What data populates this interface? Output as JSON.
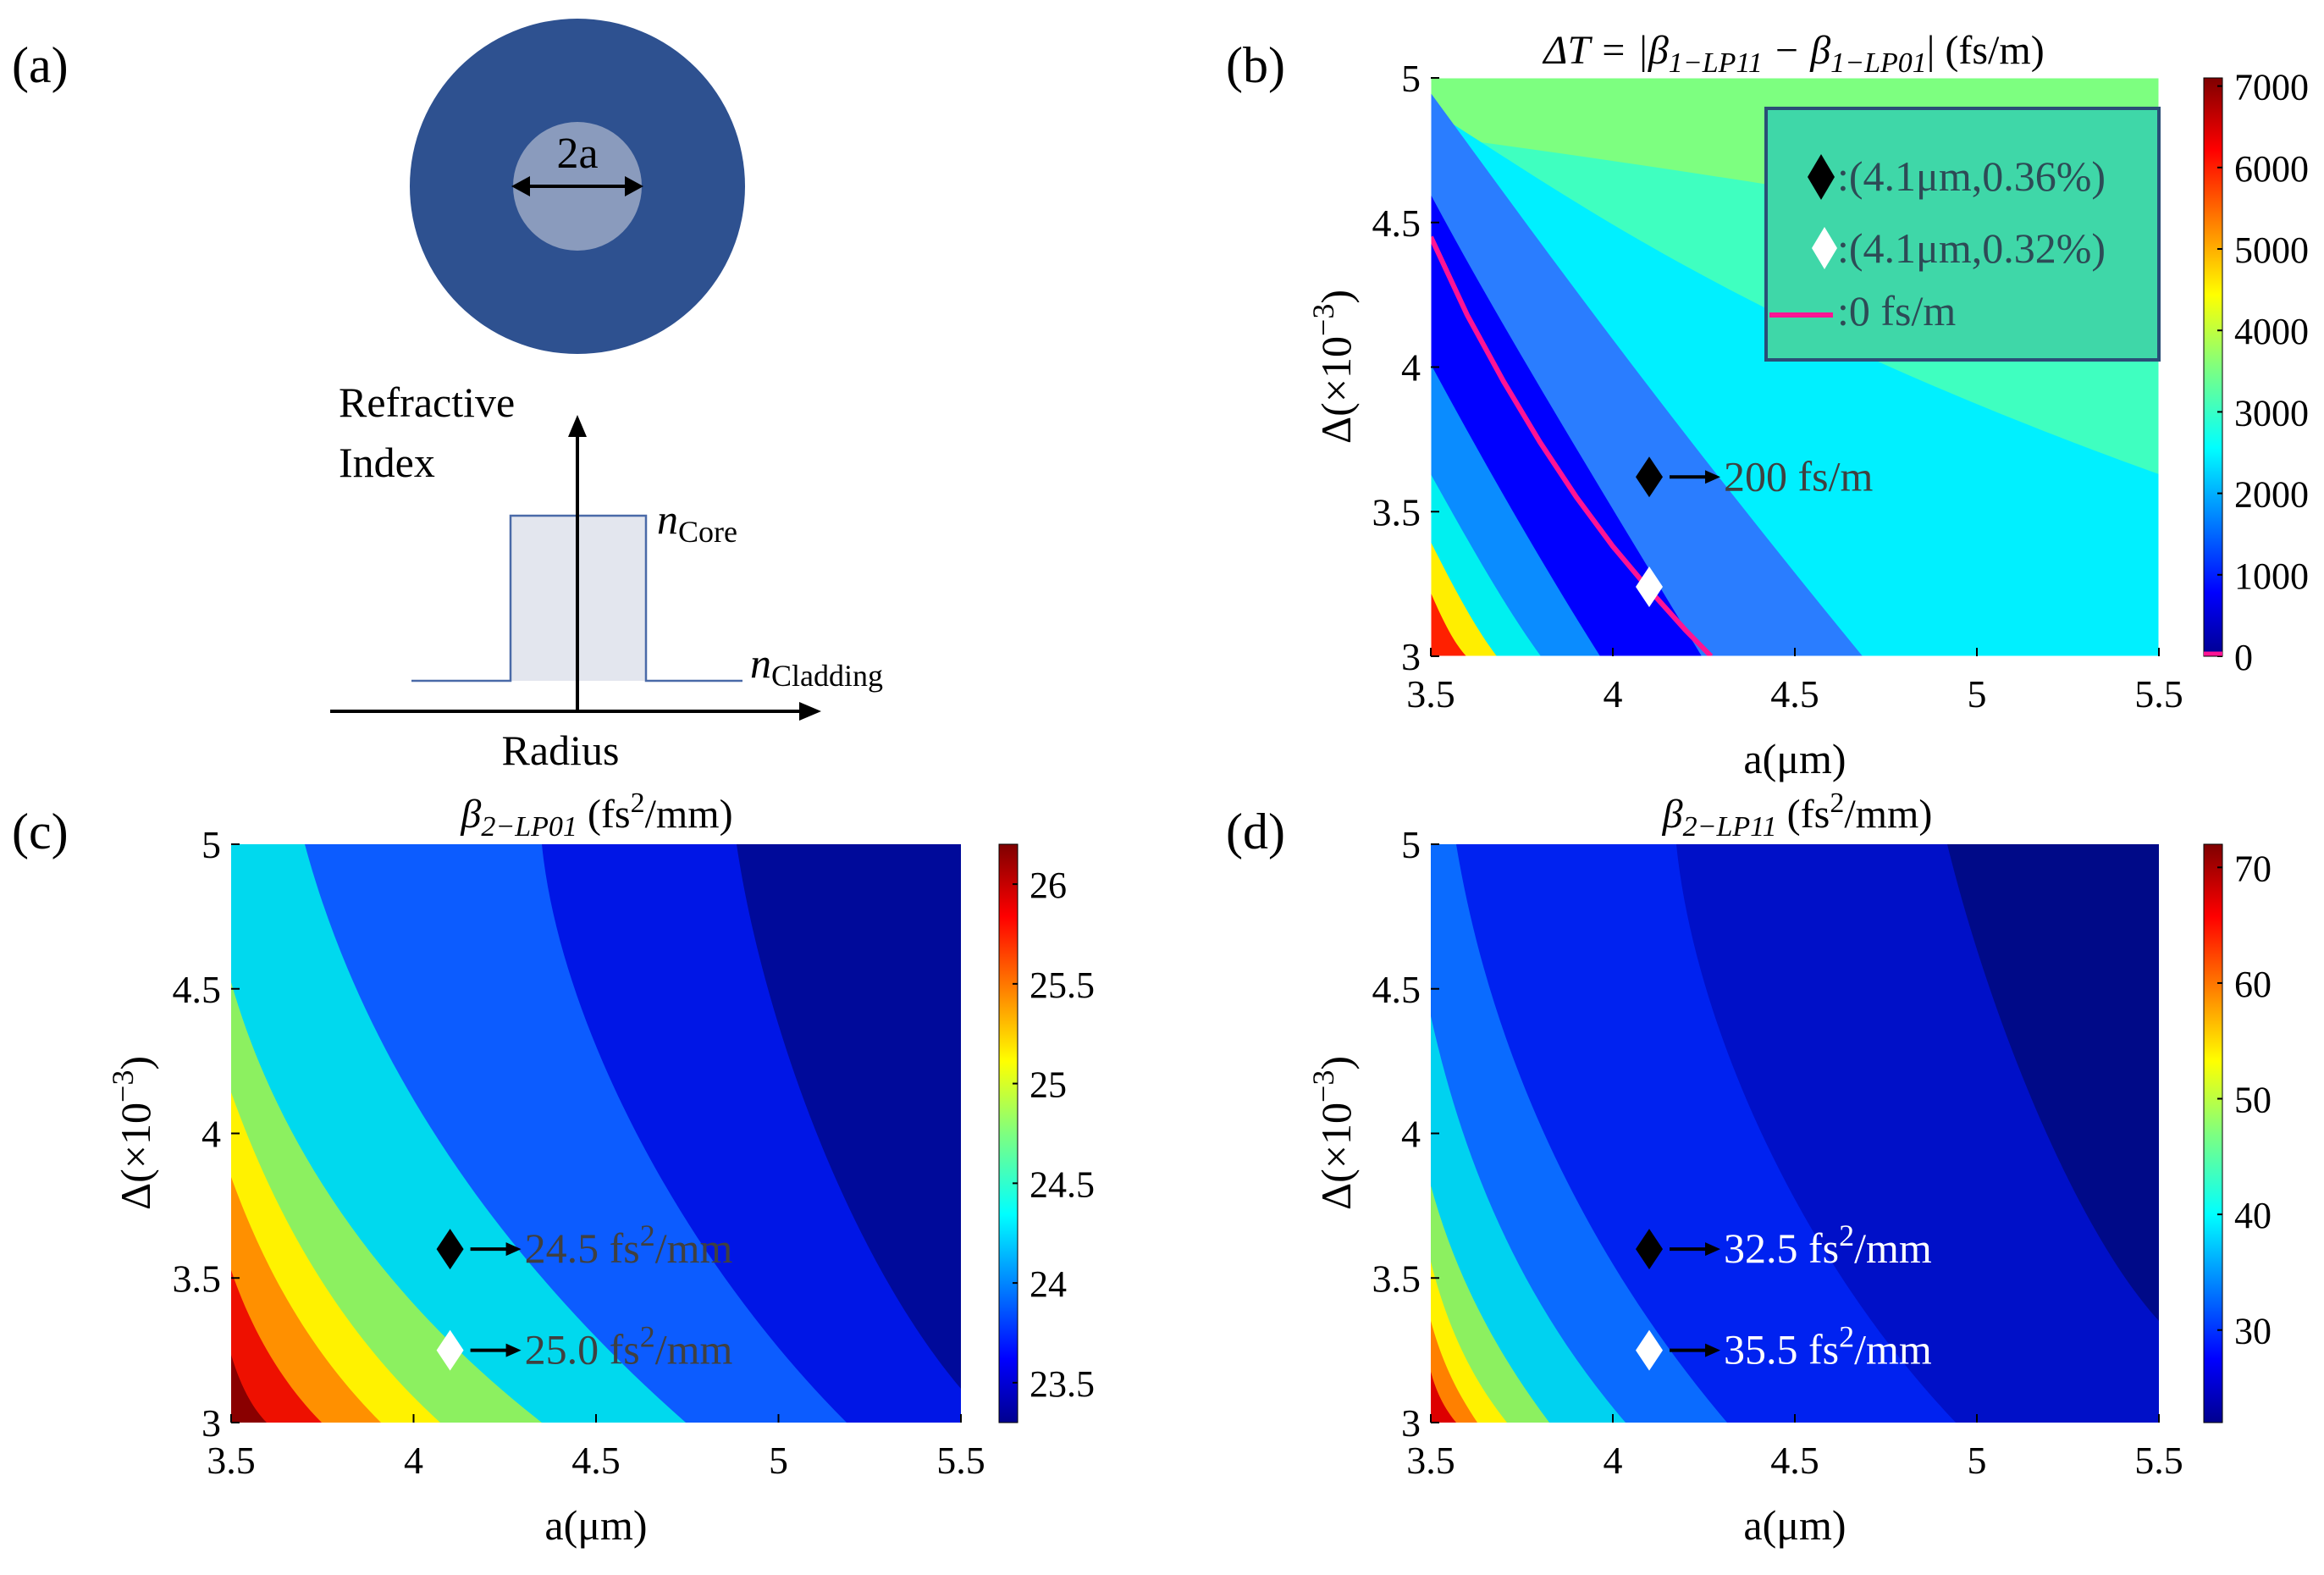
{
  "panels": {
    "a": {
      "label": "(a)",
      "fiber_label": "2a",
      "profile": {
        "ylabel_line1": "Refractive",
        "ylabel_line2": "Index",
        "xlabel": "Radius",
        "core_label": {
          "italic": "n",
          "sub": "Core"
        },
        "cladding_label": {
          "italic": "n",
          "sub": "Cladding"
        }
      },
      "colors": {
        "cladding": "#2e5190",
        "core": "#8a9bbd",
        "profile_fill": "#e3e6ee",
        "profile_line": "#4a6aa8"
      }
    },
    "b": {
      "label": "(b)"
    },
    "c": {
      "label": "(c)"
    },
    "d": {
      "label": "(d)"
    }
  },
  "chart_data": [
    {
      "panel": "b",
      "type": "heatmap",
      "title": "ΔT = |β1−LP11 − β1−LP01|  (fs/m)",
      "title_parts": {
        "lhs": "ΔT = |β",
        "s1": "1−LP11",
        "mid": " − β",
        "s2": "1−LP01",
        "rhs": "|  (fs/m)"
      },
      "xlabel": "a(μm)",
      "ylabel": "Δ(×10⁻³)",
      "ylabel_parts": {
        "base": "Δ(×10",
        "exp": "−3",
        "end": ")"
      },
      "xlim": [
        3.5,
        5.5
      ],
      "ylim": [
        3,
        5
      ],
      "xticks": [
        "3.5",
        "4",
        "4.5",
        "5",
        "5.5"
      ],
      "yticks": [
        "3",
        "3.5",
        "4",
        "4.5",
        "5"
      ],
      "colorbar": {
        "range": [
          0,
          7100
        ],
        "ticks": [
          "0",
          "1000",
          "2000",
          "3000",
          "4000",
          "5000",
          "6000",
          "7000"
        ],
        "tick_values": [
          0,
          1000,
          2000,
          3000,
          4000,
          5000,
          6000,
          7000
        ]
      },
      "zero_contour": {
        "label": ":0 fs/m",
        "color": "#ff1493",
        "points": [
          [
            3.5,
            4.45
          ],
          [
            3.6,
            4.18
          ],
          [
            3.7,
            3.95
          ],
          [
            3.8,
            3.74
          ],
          [
            3.9,
            3.55
          ],
          [
            4.0,
            3.38
          ],
          [
            4.1,
            3.23
          ],
          [
            4.2,
            3.09
          ],
          [
            4.27,
            3.0
          ]
        ]
      },
      "markers": [
        {
          "x": 4.1,
          "y": 3.62,
          "color": "black",
          "legend": ":(4.1μm,0.36%)",
          "annotation": "200 fs/m"
        },
        {
          "x": 4.1,
          "y": 3.24,
          "color": "white",
          "legend": ":(4.1μm,0.32%)",
          "annotation": ""
        }
      ]
    },
    {
      "panel": "c",
      "type": "heatmap",
      "title": "β2−LP01 (fs²/mm)",
      "title_parts": {
        "lhs": "β",
        "sub": "2−LP01",
        "rhs": " (fs",
        "sup": "2",
        "end": "/mm)"
      },
      "xlabel": "a(μm)",
      "ylabel": "Δ(×10⁻³)",
      "ylabel_parts": {
        "base": "Δ(×10",
        "exp": "−3",
        "end": ")"
      },
      "xlim": [
        3.5,
        5.5
      ],
      "ylim": [
        3,
        5
      ],
      "xticks": [
        "3.5",
        "4",
        "4.5",
        "5",
        "5.5"
      ],
      "yticks": [
        "3",
        "3.5",
        "4",
        "4.5",
        "5"
      ],
      "colorbar": {
        "range": [
          23.3,
          26.2
        ],
        "ticks": [
          "23.5",
          "24",
          "24.5",
          "25",
          "25.5",
          "26"
        ],
        "tick_values": [
          23.5,
          24,
          24.5,
          25,
          25.5,
          26
        ]
      },
      "markers": [
        {
          "x": 4.1,
          "y": 3.6,
          "color": "black",
          "annotation": {
            "val": "24.5 fs",
            "sup": "2",
            "unit": "/mm"
          }
        },
        {
          "x": 4.1,
          "y": 3.25,
          "color": "white",
          "annotation": {
            "val": "25.0 fs",
            "sup": "2",
            "unit": "/mm"
          }
        }
      ]
    },
    {
      "panel": "d",
      "type": "heatmap",
      "title": "β2−LP11 (fs²/mm)",
      "title_parts": {
        "lhs": "β",
        "sub": "2−LP11",
        "rhs": " (fs",
        "sup": "2",
        "end": "/mm)"
      },
      "xlabel": "a(μm)",
      "ylabel": "Δ(×10⁻³)",
      "ylabel_parts": {
        "base": "Δ(×10",
        "exp": "−3",
        "end": ")"
      },
      "xlim": [
        3.5,
        5.5
      ],
      "ylim": [
        3,
        5
      ],
      "xticks": [
        "3.5",
        "4",
        "4.5",
        "5",
        "5.5"
      ],
      "yticks": [
        "3",
        "3.5",
        "4",
        "4.5",
        "5"
      ],
      "colorbar": {
        "range": [
          22,
          72
        ],
        "ticks": [
          "30",
          "40",
          "50",
          "60",
          "70"
        ],
        "tick_values": [
          30,
          40,
          50,
          60,
          70
        ]
      },
      "markers": [
        {
          "x": 4.1,
          "y": 3.6,
          "color": "black",
          "annotation": {
            "val": "32.5 fs",
            "sup": "2",
            "unit": "/mm"
          }
        },
        {
          "x": 4.1,
          "y": 3.25,
          "color": "white",
          "annotation": {
            "val": "35.5 fs",
            "sup": "2",
            "unit": "/mm"
          }
        }
      ]
    }
  ]
}
